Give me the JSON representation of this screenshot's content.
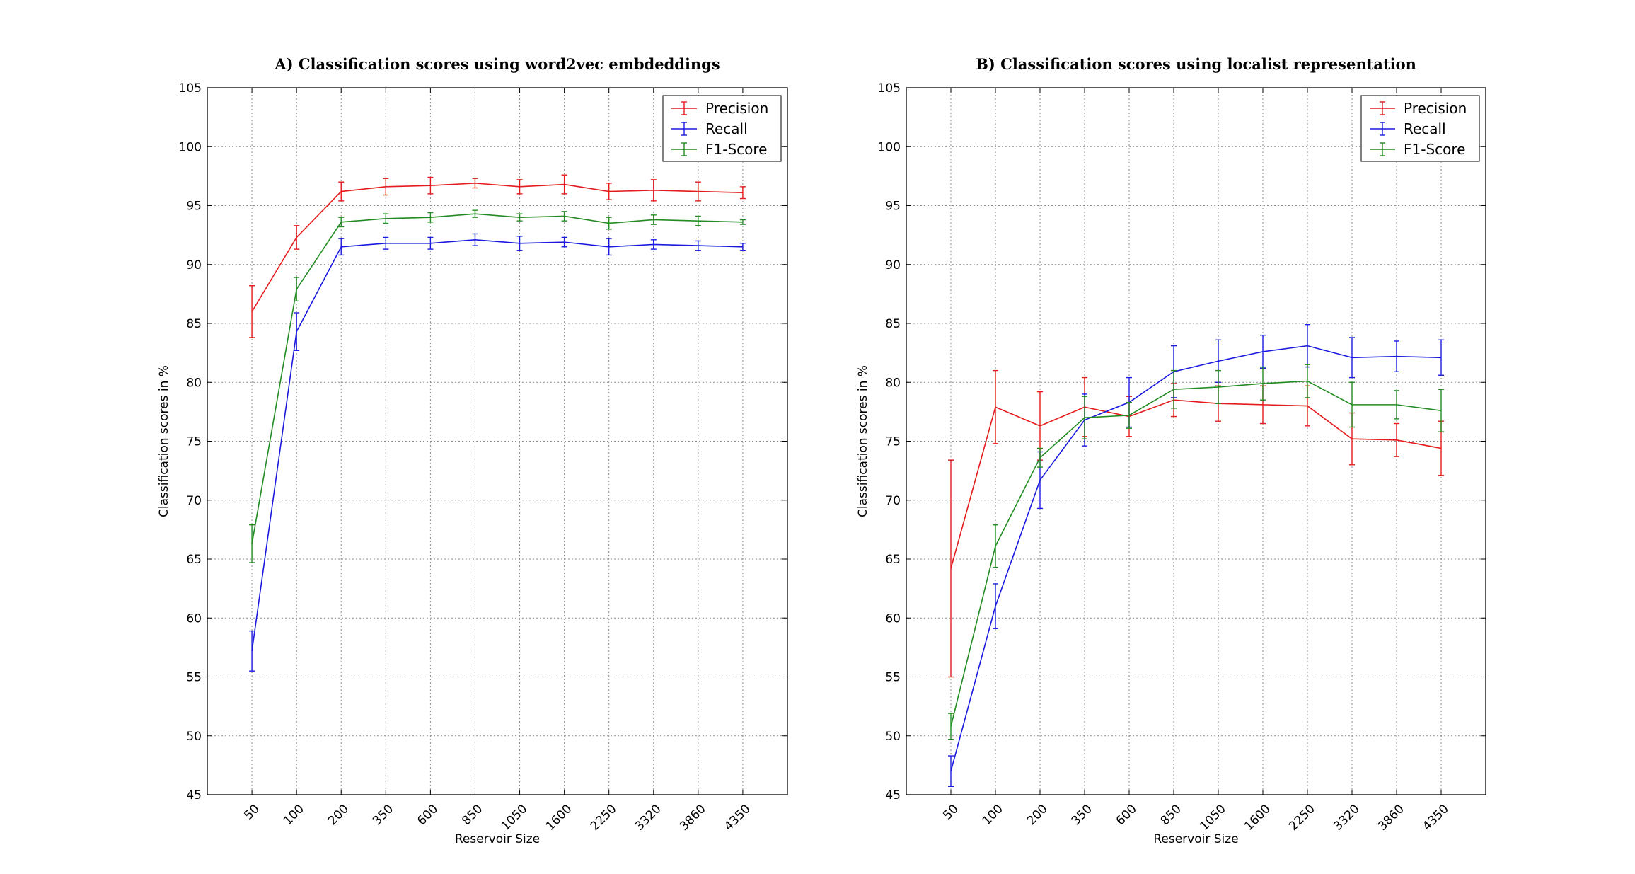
{
  "chart_data": [
    {
      "type": "line",
      "title": "A) Classification scores using word2vec embdeddings",
      "xlabel": "Reservoir Size",
      "ylabel": "Classification scores in %",
      "ylim": [
        45,
        105
      ],
      "yticks": [
        "45",
        "50",
        "55",
        "60",
        "65",
        "70",
        "75",
        "80",
        "85",
        "90",
        "95",
        "100",
        "105"
      ],
      "categories": [
        "50",
        "100",
        "200",
        "350",
        "600",
        "850",
        "1050",
        "1600",
        "2250",
        "3320",
        "3860",
        "4350"
      ],
      "grid": true,
      "legend_position": "top-right",
      "series": [
        {
          "name": "Precision",
          "color": "#e41a1c",
          "values": [
            86.0,
            92.3,
            96.2,
            96.6,
            96.7,
            96.9,
            96.6,
            96.8,
            96.2,
            96.3,
            96.2,
            96.1
          ],
          "errors": [
            2.2,
            1.0,
            0.8,
            0.7,
            0.7,
            0.4,
            0.6,
            0.8,
            0.7,
            0.9,
            0.8,
            0.5
          ]
        },
        {
          "name": "Recall",
          "color": "#1a1adf",
          "values": [
            57.2,
            84.3,
            91.5,
            91.8,
            91.8,
            92.1,
            91.8,
            91.9,
            91.5,
            91.7,
            91.6,
            91.5
          ],
          "errors": [
            1.7,
            1.6,
            0.7,
            0.5,
            0.5,
            0.5,
            0.6,
            0.4,
            0.7,
            0.4,
            0.4,
            0.3
          ]
        },
        {
          "name": "F1-Score",
          "color": "#228b22",
          "values": [
            66.3,
            87.9,
            93.6,
            93.9,
            94.0,
            94.3,
            94.0,
            94.1,
            93.5,
            93.8,
            93.7,
            93.6
          ],
          "errors": [
            1.6,
            1.0,
            0.4,
            0.4,
            0.4,
            0.3,
            0.3,
            0.4,
            0.5,
            0.4,
            0.4,
            0.2
          ]
        }
      ]
    },
    {
      "type": "line",
      "title": "B) Classification scores using localist representation",
      "xlabel": "Reservoir Size",
      "ylabel": "Classification scores in %",
      "ylim": [
        45,
        105
      ],
      "yticks": [
        "45",
        "50",
        "55",
        "60",
        "65",
        "70",
        "75",
        "80",
        "85",
        "90",
        "95",
        "100",
        "105"
      ],
      "categories": [
        "50",
        "100",
        "200",
        "350",
        "600",
        "850",
        "1050",
        "1600",
        "2250",
        "3320",
        "3860",
        "4350"
      ],
      "grid": true,
      "legend_position": "top-right",
      "series": [
        {
          "name": "Precision",
          "color": "#e41a1c",
          "values": [
            64.2,
            77.9,
            76.3,
            77.9,
            77.1,
            78.5,
            78.2,
            78.1,
            78.0,
            75.2,
            75.1,
            74.4
          ],
          "errors": [
            9.2,
            3.1,
            2.9,
            2.5,
            1.7,
            1.4,
            1.5,
            1.6,
            1.7,
            2.2,
            1.4,
            2.3
          ]
        },
        {
          "name": "Recall",
          "color": "#1a1adf",
          "values": [
            47.0,
            61.0,
            71.7,
            76.8,
            78.3,
            80.9,
            81.8,
            82.6,
            83.1,
            82.1,
            82.2,
            82.1
          ],
          "errors": [
            1.3,
            1.9,
            2.4,
            2.2,
            2.1,
            2.2,
            1.8,
            1.4,
            1.8,
            1.7,
            1.3,
            1.5
          ]
        },
        {
          "name": "F1-Score",
          "color": "#228b22",
          "values": [
            50.8,
            66.1,
            73.6,
            77.0,
            77.2,
            79.4,
            79.6,
            79.9,
            80.1,
            78.1,
            78.1,
            77.6
          ],
          "errors": [
            1.1,
            1.8,
            0.8,
            1.8,
            1.1,
            1.6,
            1.4,
            1.4,
            1.4,
            1.9,
            1.2,
            1.8
          ]
        }
      ]
    }
  ]
}
